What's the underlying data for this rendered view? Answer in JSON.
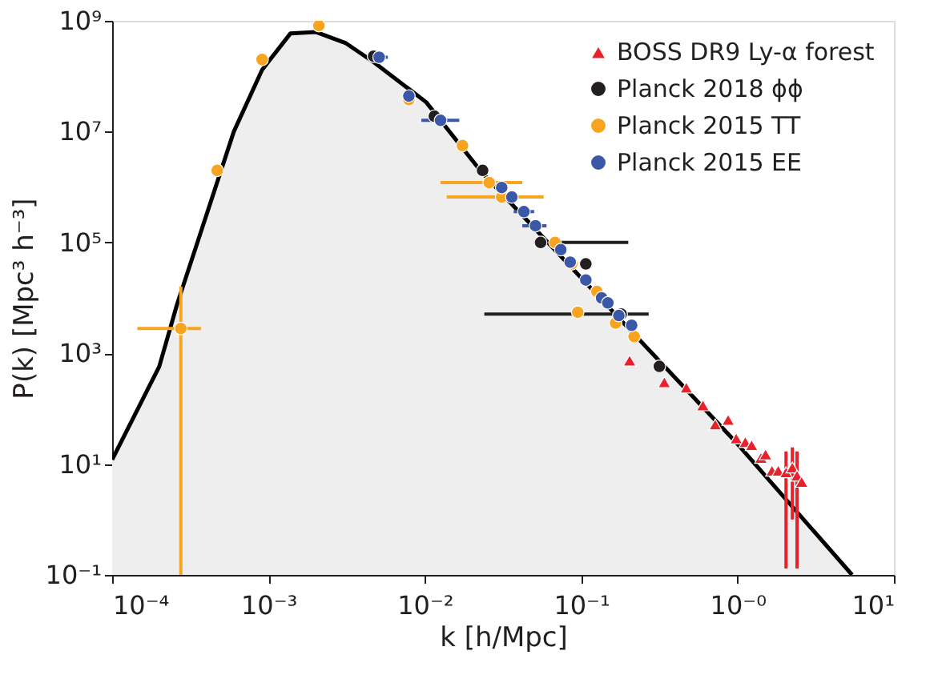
{
  "chart_data": {
    "type": "scatter",
    "xlabel": "k [h/Mpc]",
    "ylabel": "P(k) [Mpc³ h⁻³]",
    "log": "xy",
    "grid": false,
    "legend": "top right",
    "xlim": [
      0.0001,
      10
    ],
    "ylim": [
      0.1,
      1000000000
    ],
    "xticks": [
      {
        "value": 0.0001,
        "label": "10⁻⁴"
      },
      {
        "value": 0.001,
        "label": "10⁻³"
      },
      {
        "value": 0.01,
        "label": "10⁻²"
      },
      {
        "value": 0.1,
        "label": "10⁻¹"
      },
      {
        "value": 1,
        "label": "10⁻⁰"
      },
      {
        "value": 10,
        "label": "10¹"
      }
    ],
    "yticks": [
      {
        "value": 0.1,
        "label": "10⁻¹"
      },
      {
        "value": 10,
        "label": "10¹"
      },
      {
        "value": 1000,
        "label": "10³"
      },
      {
        "value": 100000,
        "label": "10⁵"
      },
      {
        "value": 10000000,
        "label": "10⁷"
      },
      {
        "value": 1000000000,
        "label": "10⁹"
      }
    ],
    "series": [
      {
        "type": "area",
        "color": "#000000",
        "x": [
          0.0001,
          0.0002,
          0.00026,
          0.0006,
          0.00091,
          0.00138,
          0.002,
          0.0031,
          0.0047,
          0.0102,
          0.0229,
          1.0,
          5.4
        ],
        "values": [
          12,
          575,
          7600,
          10000000.0,
          130000000.0,
          590000000.0,
          630000000.0,
          400000000.0,
          180000000.0,
          34000000.0,
          1900000.0,
          23,
          0.1
        ]
      },
      {
        "name": "BOSS DR9 Ly-α forest",
        "color": "#e8212b",
        "marker": "triangle",
        "x": [
          0.204,
          0.34,
          0.47,
          0.6,
          0.72,
          0.87,
          0.98,
          1.12,
          1.23,
          1.41,
          1.51,
          1.66,
          1.82,
          2.04,
          2.24,
          2.4,
          2.57
        ],
        "values": [
          740,
          300,
          240,
          115,
          52,
          63,
          29,
          25,
          22,
          13,
          15,
          7.6,
          7.6,
          7.1,
          8.7,
          6.2,
          4.8
        ],
        "errors": [
          null,
          null,
          null,
          null,
          null,
          null,
          null,
          null,
          null,
          null,
          null,
          null,
          null,
          [
            0.13,
            17
          ],
          [
            1,
            20
          ],
          [
            0.13,
            17
          ],
          null
        ]
      },
      {
        "name": "Planck 2018 ϕϕ",
        "color": "#231f20",
        "marker": "circle",
        "x": [
          0.0047,
          0.0115,
          0.0234,
          0.055,
          0.107,
          0.18,
          0.316
        ],
        "values": [
          230000000.0,
          19000000.0,
          2000000.0,
          100000.0,
          41000,
          5100,
          580
        ],
        "xerrors": [
          null,
          null,
          null,
          [
            0.05,
            0.2
          ],
          null,
          [
            0.024,
            0.27
          ],
          null
        ]
      },
      {
        "name": "Planck 2015 TT",
        "color": "#f7a521",
        "marker": "circle",
        "x": [
          0.000275,
          0.00047,
          0.00091,
          0.0021,
          0.0079,
          0.0174,
          0.0258,
          0.031,
          0.068,
          0.087,
          0.095,
          0.126,
          0.166,
          0.218
        ],
        "values": [
          2800,
          2000000.0,
          200000000.0,
          820000000.0,
          38000000.0,
          5600000.0,
          1200000.0,
          660000.0,
          100000.0,
          41000,
          5500,
          13000,
          3500,
          2000
        ],
        "errors": [
          [
            0.1,
            16000
          ],
          null,
          null,
          null,
          null,
          null,
          null,
          null,
          null,
          null,
          null,
          null,
          null,
          null
        ],
        "xerrors": [
          [
            0.000145,
            0.00037
          ],
          null,
          null,
          null,
          null,
          null,
          [
            0.0126,
            0.042
          ],
          [
            0.0138,
            0.0575
          ],
          null,
          null,
          null,
          null,
          null,
          null
        ]
      },
      {
        "name": "Planck 2015 EE",
        "color": "#3b58a8",
        "marker": "circle",
        "x": [
          0.0051,
          0.0079,
          0.0126,
          0.031,
          0.036,
          0.043,
          0.051,
          0.074,
          0.085,
          0.107,
          0.135,
          0.148,
          0.174,
          0.21
        ],
        "values": [
          220000000.0,
          44000000.0,
          16000000.0,
          980000.0,
          660000.0,
          360000.0,
          200000.0,
          74000,
          44000,
          21000,
          10000,
          8100,
          4800,
          3200
        ],
        "xerrors": [
          [
            0.0045,
            0.0058
          ],
          null,
          [
            0.0095,
            0.0166
          ],
          null,
          null,
          [
            0.037,
            0.05
          ],
          [
            0.042,
            0.06
          ],
          null,
          null,
          null,
          null,
          null,
          null,
          null
        ]
      }
    ]
  }
}
